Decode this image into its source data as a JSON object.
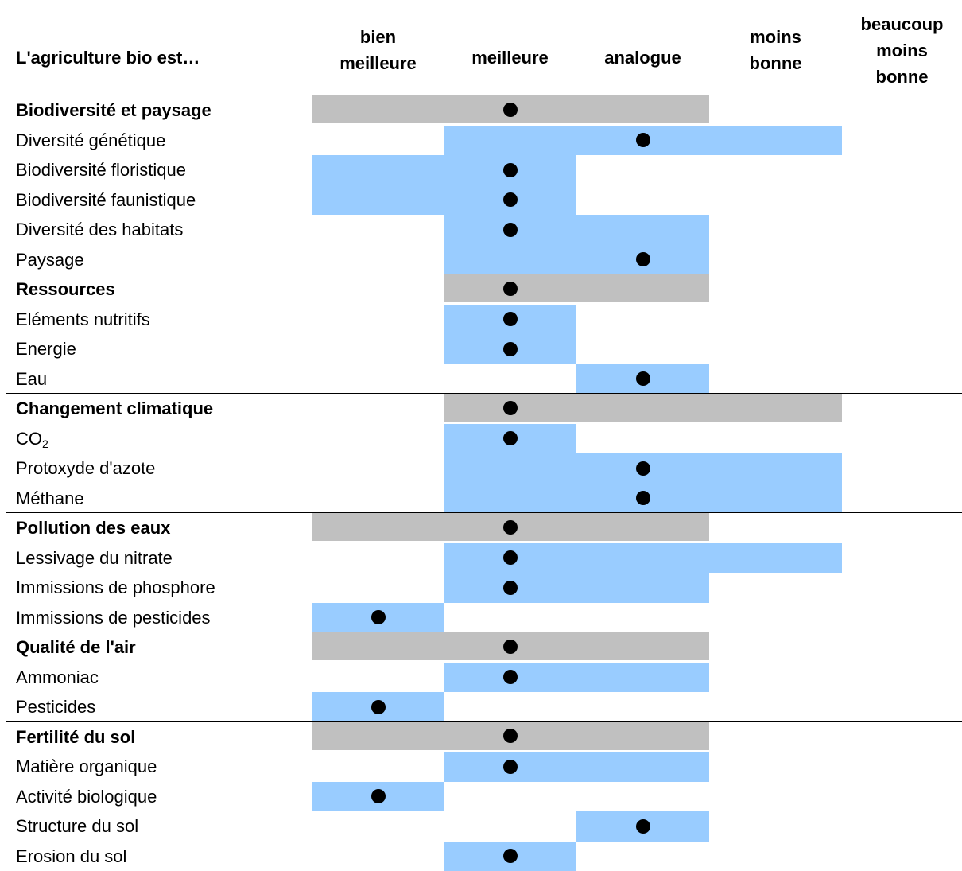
{
  "chart_data": {
    "type": "table",
    "row_header": "L'agriculture bio est…",
    "columns": [
      "bien\nmeilleure",
      "meilleure",
      "analogue",
      "moins\nbonne",
      "beaucoup\nmoins\nbonne"
    ],
    "categories": [
      {
        "label": "Biodiversité et paysage",
        "range": [
          0,
          2
        ],
        "value": 1,
        "items": [
          {
            "label": "Diversité génétique",
            "range": [
              1,
              3
            ],
            "value": 2
          },
          {
            "label": "Biodiversité floristique",
            "range": [
              0,
              1
            ],
            "value": 1
          },
          {
            "label": "Biodiversité faunistique",
            "range": [
              0,
              1
            ],
            "value": 1
          },
          {
            "label": "Diversité des habitats",
            "range": [
              1,
              2
            ],
            "value": 1
          },
          {
            "label": "Paysage",
            "range": [
              1,
              2
            ],
            "value": 2
          }
        ]
      },
      {
        "label": "Ressources",
        "range": [
          1,
          2
        ],
        "value": 1,
        "items": [
          {
            "label": "Eléments nutritifs",
            "range": [
              1,
              1
            ],
            "value": 1
          },
          {
            "label": "Energie",
            "range": [
              1,
              1
            ],
            "value": 1
          },
          {
            "label": "Eau",
            "range": [
              2,
              2
            ],
            "value": 2
          }
        ]
      },
      {
        "label": "Changement climatique",
        "range": [
          1,
          3
        ],
        "value": 1,
        "items": [
          {
            "label": "CO",
            "subscript": "2",
            "range": [
              1,
              1
            ],
            "value": 1
          },
          {
            "label": "Protoxyde d'azote",
            "range": [
              1,
              3
            ],
            "value": 2
          },
          {
            "label": "Méthane",
            "range": [
              1,
              3
            ],
            "value": 2
          }
        ]
      },
      {
        "label": "Pollution des eaux",
        "range": [
          0,
          2
        ],
        "value": 1,
        "items": [
          {
            "label": "Lessivage du nitrate",
            "range": [
              1,
              3
            ],
            "value": 1
          },
          {
            "label": "Immissions de phosphore",
            "range": [
              1,
              2
            ],
            "value": 1
          },
          {
            "label": "Immissions de pesticides",
            "range": [
              0,
              0
            ],
            "value": 0
          }
        ]
      },
      {
        "label": "Qualité de l'air",
        "range": [
          0,
          2
        ],
        "value": 1,
        "items": [
          {
            "label": "Ammoniac",
            "range": [
              1,
              2
            ],
            "value": 1
          },
          {
            "label": "Pesticides",
            "range": [
              0,
              0
            ],
            "value": 0
          }
        ]
      },
      {
        "label": "Fertilité du sol",
        "range": [
          0,
          2
        ],
        "value": 1,
        "items": [
          {
            "label": "Matière organique",
            "range": [
              1,
              2
            ],
            "value": 1
          },
          {
            "label": "Activité biologique",
            "range": [
              0,
              0
            ],
            "value": 0
          },
          {
            "label": "Structure du sol",
            "range": [
              2,
              2
            ],
            "value": 2
          },
          {
            "label": "Erosion du sol",
            "range": [
              1,
              1
            ],
            "value": 1
          }
        ]
      }
    ],
    "colors": {
      "category_range": "#c0c0c0",
      "item_range": "#99ccff",
      "dot": "#000000"
    }
  }
}
